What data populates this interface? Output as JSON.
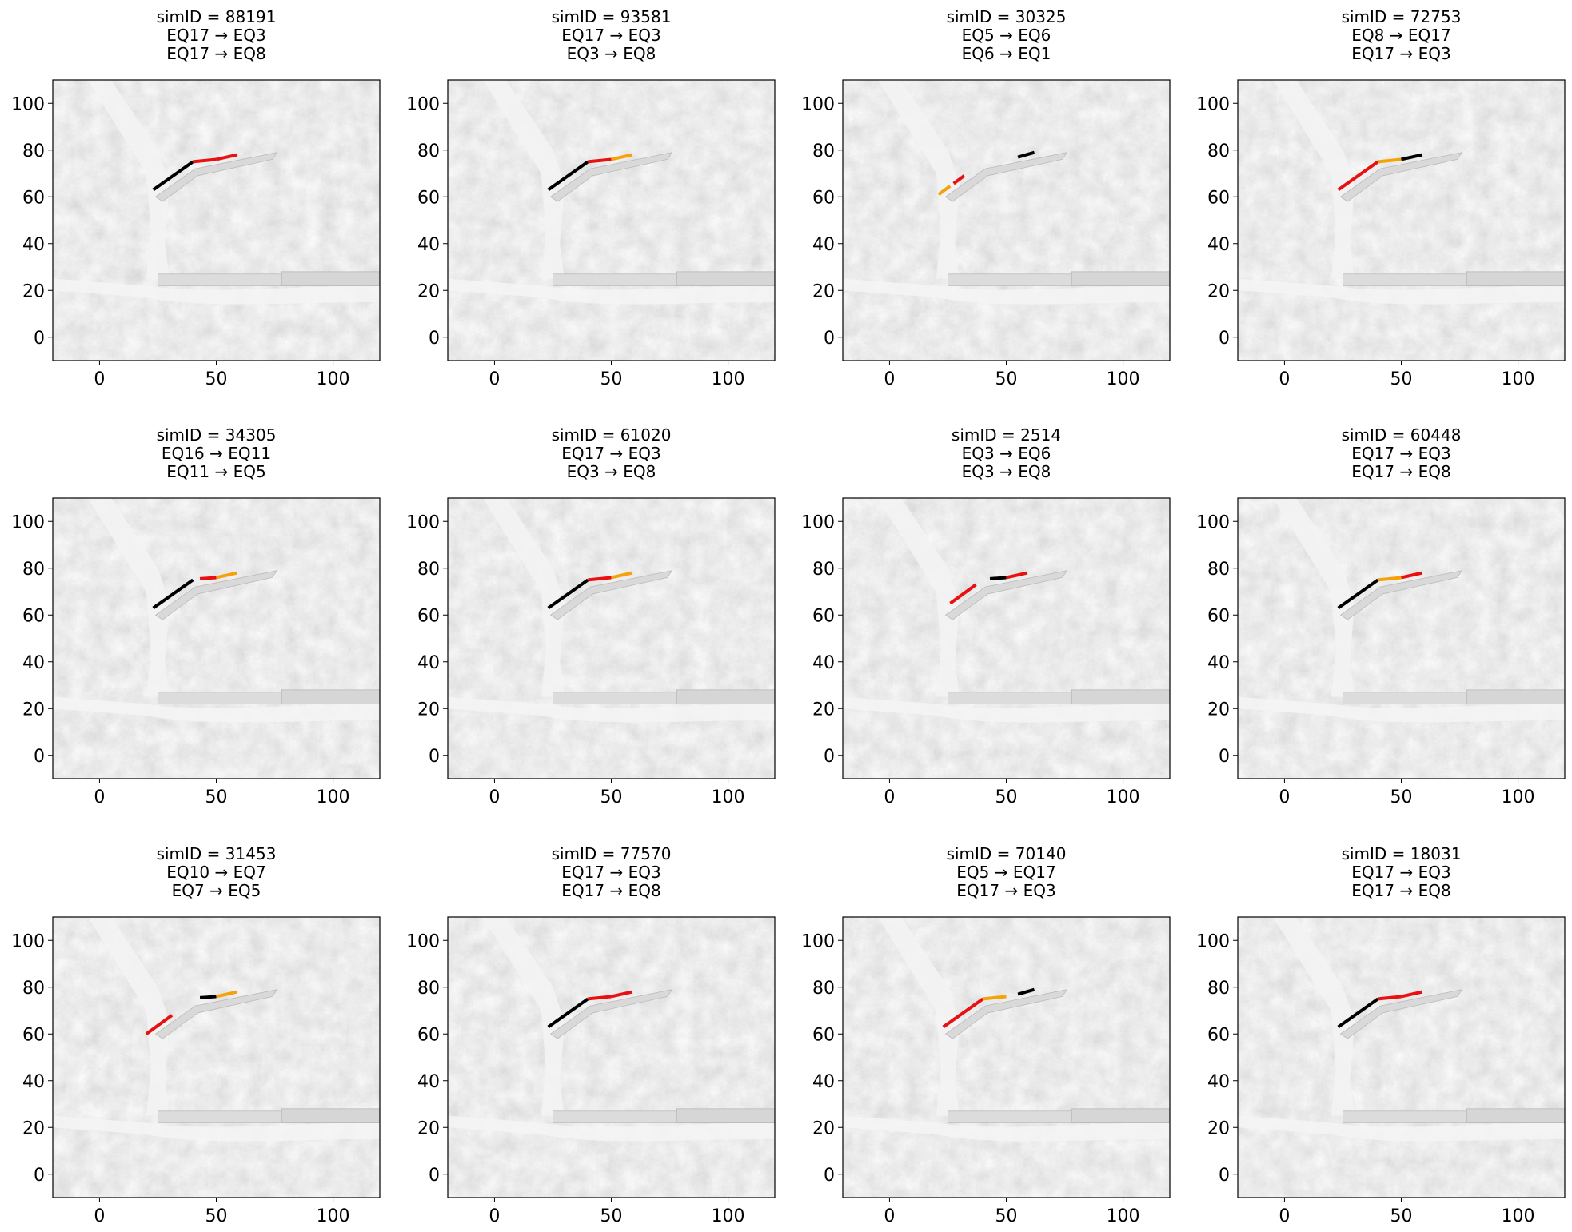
{
  "chart_data": {
    "type": "line",
    "layout": {
      "rows": 3,
      "cols": 4
    },
    "xlim": [
      -20,
      120
    ],
    "ylim": [
      -10,
      110
    ],
    "xticks": [
      0,
      50,
      100
    ],
    "yticks": [
      0,
      20,
      40,
      60,
      80,
      100
    ],
    "grid": false,
    "background": "grey terrain relief map with river channels",
    "segment_colors": {
      "primary": "#000000",
      "secondary": "#e81010",
      "tertiary": "#f5a20a"
    },
    "fault_segments": {
      "A": [
        [
          23,
          63
        ],
        [
          40,
          75
        ]
      ],
      "B": [
        [
          40,
          75
        ],
        [
          50,
          76
        ]
      ],
      "C": [
        [
          50,
          76
        ],
        [
          59,
          78
        ]
      ],
      "D": [
        [
          21,
          61
        ],
        [
          32,
          69
        ]
      ],
      "E": [
        [
          55,
          77
        ],
        [
          62,
          79
        ]
      ]
    },
    "panels": [
      {
        "title": [
          "simID = 88191",
          "EQ17 → EQ3",
          "EQ17 → EQ8"
        ],
        "segments": [
          {
            "seg": "A",
            "color": "#000000"
          },
          {
            "seg": "B",
            "color": "#e81010"
          },
          {
            "seg": "C",
            "color": "#e81010"
          }
        ]
      },
      {
        "title": [
          "simID = 93581",
          "EQ17 → EQ3",
          "EQ3 → EQ8"
        ],
        "segments": [
          {
            "seg": "A",
            "color": "#000000"
          },
          {
            "seg": "B",
            "color": "#e81010"
          },
          {
            "seg": "C",
            "color": "#f5a20a"
          }
        ]
      },
      {
        "title": [
          "simID = 30325",
          "EQ5 → EQ6",
          "EQ6 → EQ1"
        ],
        "segments": [
          {
            "seg": "D",
            "color": "#f5a20a",
            "split": 0.45,
            "color2": "#e81010"
          },
          {
            "seg": "E",
            "color": "#000000"
          }
        ]
      },
      {
        "title": [
          "simID = 72753",
          "EQ8 → EQ17",
          "EQ17 → EQ3"
        ],
        "segments": [
          {
            "seg": "A",
            "color": "#e81010"
          },
          {
            "seg": "B",
            "color": "#f5a20a"
          },
          {
            "seg": "C",
            "color": "#000000"
          }
        ]
      },
      {
        "title": [
          "simID = 34305",
          "EQ16 → EQ11",
          "EQ11 → EQ5"
        ],
        "segments": [
          {
            "seg": "A",
            "color": "#000000"
          },
          {
            "seg": "B",
            "color": "#e81010",
            "gap": true
          },
          {
            "seg": "C",
            "color": "#f5a20a"
          }
        ]
      },
      {
        "title": [
          "simID = 61020",
          "EQ17 → EQ3",
          "EQ3 → EQ8"
        ],
        "segments": [
          {
            "seg": "A",
            "color": "#000000"
          },
          {
            "seg": "B",
            "color": "#e81010"
          },
          {
            "seg": "C",
            "color": "#f5a20a"
          }
        ]
      },
      {
        "title": [
          "simID = 2514",
          "EQ3 → EQ6",
          "EQ3 → EQ8"
        ],
        "segments": [
          {
            "seg": "D",
            "color": "#e81010",
            "shift": [
              5,
              4
            ]
          },
          {
            "seg": "B",
            "color": "#000000",
            "gap": true
          },
          {
            "seg": "C",
            "color": "#e81010"
          }
        ]
      },
      {
        "title": [
          "simID = 60448",
          "EQ17 → EQ3",
          "EQ17 → EQ8"
        ],
        "segments": [
          {
            "seg": "A",
            "color": "#000000"
          },
          {
            "seg": "B",
            "color": "#f5a20a"
          },
          {
            "seg": "C",
            "color": "#e81010"
          }
        ]
      },
      {
        "title": [
          "simID = 31453",
          "EQ10 → EQ7",
          "EQ7 → EQ5"
        ],
        "segments": [
          {
            "seg": "D",
            "color": "#e81010",
            "shift": [
              -1,
              -1
            ]
          },
          {
            "seg": "B",
            "color": "#000000",
            "gap": true
          },
          {
            "seg": "C",
            "color": "#f5a20a"
          }
        ]
      },
      {
        "title": [
          "simID = 77570",
          "EQ17 → EQ3",
          "EQ17 → EQ8"
        ],
        "segments": [
          {
            "seg": "A",
            "color": "#000000"
          },
          {
            "seg": "B",
            "color": "#e81010"
          },
          {
            "seg": "C",
            "color": "#e81010"
          }
        ]
      },
      {
        "title": [
          "simID = 70140",
          "EQ5 → EQ17",
          "EQ17 → EQ3"
        ],
        "segments": [
          {
            "seg": "A",
            "color": "#e81010"
          },
          {
            "seg": "B",
            "color": "#f5a20a"
          },
          {
            "seg": "E",
            "color": "#000000"
          }
        ]
      },
      {
        "title": [
          "simID = 18031",
          "EQ17 → EQ3",
          "EQ17 → EQ8"
        ],
        "segments": [
          {
            "seg": "A",
            "color": "#000000"
          },
          {
            "seg": "B",
            "color": "#e81010"
          },
          {
            "seg": "C",
            "color": "#e81010"
          }
        ]
      }
    ]
  }
}
